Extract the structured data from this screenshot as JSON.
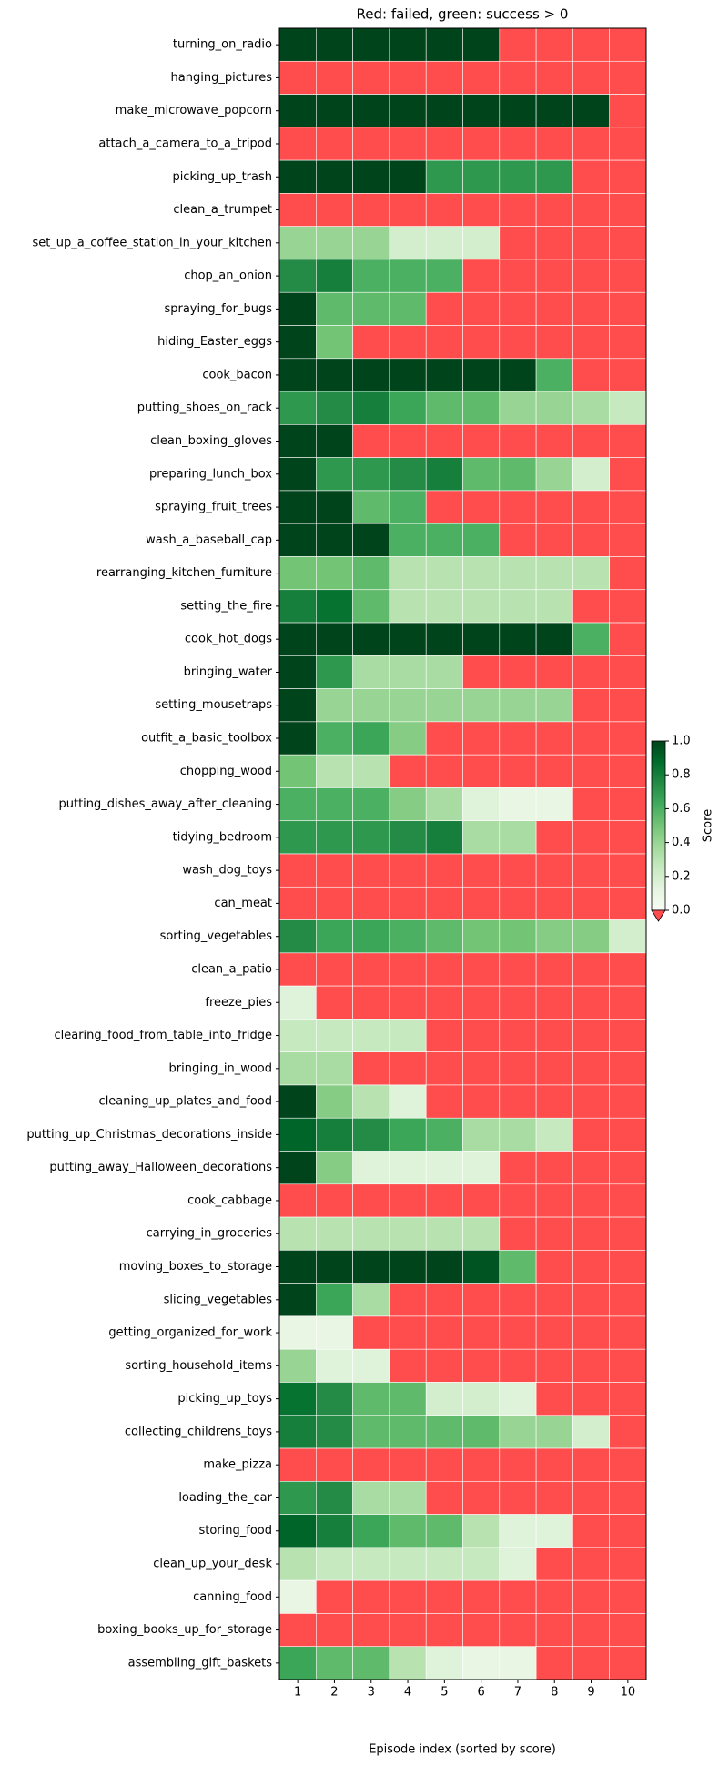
{
  "chart_data": {
    "type": "heatmap",
    "title": "Red: failed, green: success > 0",
    "x_label": "Episode index (sorted by score)",
    "x": [
      1,
      2,
      3,
      4,
      5,
      6,
      7,
      8,
      9,
      10
    ],
    "y_categories": [
      "turning_on_radio",
      "hanging_pictures",
      "make_microwave_popcorn",
      "attach_a_camera_to_a_tripod",
      "picking_up_trash",
      "clean_a_trumpet",
      "set_up_a_coffee_station_in_your_kitchen",
      "chop_an_onion",
      "spraying_for_bugs",
      "hiding_Easter_eggs",
      "cook_bacon",
      "putting_shoes_on_rack",
      "clean_boxing_gloves",
      "preparing_lunch_box",
      "spraying_fruit_trees",
      "wash_a_baseball_cap",
      "rearranging_kitchen_furniture",
      "setting_the_fire",
      "cook_hot_dogs",
      "bringing_water",
      "setting_mousetraps",
      "outfit_a_basic_toolbox",
      "chopping_wood",
      "putting_dishes_away_after_cleaning",
      "tidying_bedroom",
      "wash_dog_toys",
      "can_meat",
      "sorting_vegetables",
      "clean_a_patio",
      "freeze_pies",
      "clearing_food_from_table_into_fridge",
      "bringing_in_wood",
      "cleaning_up_plates_and_food",
      "putting_up_Christmas_decorations_inside",
      "putting_away_Halloween_decorations",
      "cook_cabbage",
      "carrying_in_groceries",
      "moving_boxes_to_storage",
      "slicing_vegetables",
      "getting_organized_for_work",
      "sorting_household_items",
      "picking_up_toys",
      "collecting_childrens_toys",
      "make_pizza",
      "loading_the_car",
      "storing_food",
      "clean_up_your_desk",
      "canning_food",
      "boxing_books_up_for_storage",
      "assembling_gift_baskets"
    ],
    "values": [
      [
        1,
        1,
        1,
        1,
        1,
        1,
        null,
        null,
        null,
        null
      ],
      [
        null,
        null,
        null,
        null,
        null,
        null,
        null,
        null,
        null,
        null
      ],
      [
        1,
        1,
        1,
        1,
        1,
        1,
        1,
        1,
        1,
        null
      ],
      [
        null,
        null,
        null,
        null,
        null,
        null,
        null,
        null,
        null,
        null
      ],
      [
        1,
        1,
        1,
        1,
        0.7,
        0.7,
        0.7,
        0.7,
        null,
        null
      ],
      [
        null,
        null,
        null,
        null,
        null,
        null,
        null,
        null,
        null,
        null
      ],
      [
        0.4,
        0.4,
        0.4,
        0.2,
        0.2,
        0.2,
        null,
        null,
        null,
        null
      ],
      [
        0.75,
        0.8,
        0.6,
        0.6,
        0.6,
        null,
        null,
        null,
        null,
        null
      ],
      [
        1,
        0.55,
        0.55,
        0.55,
        null,
        null,
        null,
        null,
        null,
        null
      ],
      [
        1,
        0.5,
        null,
        null,
        null,
        null,
        null,
        null,
        null,
        null
      ],
      [
        1,
        1,
        1,
        1,
        1,
        1,
        1,
        0.6,
        null,
        null
      ],
      [
        0.7,
        0.75,
        0.8,
        0.65,
        0.55,
        0.55,
        0.4,
        0.4,
        0.35,
        0.25
      ],
      [
        1,
        1,
        null,
        null,
        null,
        null,
        null,
        null,
        null,
        null
      ],
      [
        1,
        0.7,
        0.7,
        0.75,
        0.8,
        0.55,
        0.55,
        0.4,
        0.2,
        null
      ],
      [
        1,
        1,
        0.55,
        0.6,
        null,
        null,
        null,
        null,
        null,
        null
      ],
      [
        1,
        1,
        1,
        0.6,
        0.6,
        0.6,
        null,
        null,
        null,
        null
      ],
      [
        0.5,
        0.5,
        0.55,
        0.3,
        0.3,
        0.3,
        0.3,
        0.3,
        0.3,
        null
      ],
      [
        0.8,
        0.85,
        0.55,
        0.3,
        0.3,
        0.3,
        0.3,
        0.3,
        null,
        null
      ],
      [
        1,
        1,
        1,
        1,
        1,
        1,
        1,
        1,
        0.6,
        null
      ],
      [
        1,
        0.7,
        0.35,
        0.35,
        0.35,
        null,
        null,
        null,
        null,
        null
      ],
      [
        1,
        0.4,
        0.4,
        0.4,
        0.4,
        0.4,
        0.4,
        0.4,
        null,
        null
      ],
      [
        1,
        0.6,
        0.65,
        0.45,
        null,
        null,
        null,
        null,
        null,
        null
      ],
      [
        0.5,
        0.3,
        0.3,
        null,
        null,
        null,
        null,
        null,
        null,
        null
      ],
      [
        0.6,
        0.6,
        0.6,
        0.45,
        0.35,
        0.15,
        0.1,
        0.1,
        null,
        null
      ],
      [
        0.7,
        0.7,
        0.7,
        0.75,
        0.8,
        0.35,
        0.35,
        null,
        null,
        null
      ],
      [
        null,
        null,
        null,
        null,
        null,
        null,
        null,
        null,
        null,
        null
      ],
      [
        null,
        null,
        null,
        null,
        null,
        null,
        null,
        null,
        null,
        null
      ],
      [
        0.75,
        0.65,
        0.65,
        0.6,
        0.55,
        0.5,
        0.5,
        0.45,
        0.45,
        0.2
      ],
      [
        null,
        null,
        null,
        null,
        null,
        null,
        null,
        null,
        null,
        null
      ],
      [
        0.15,
        null,
        null,
        null,
        null,
        null,
        null,
        null,
        null,
        null
      ],
      [
        0.25,
        0.25,
        0.25,
        0.25,
        null,
        null,
        null,
        null,
        null,
        null
      ],
      [
        0.35,
        0.35,
        null,
        null,
        null,
        null,
        null,
        null,
        null,
        null
      ],
      [
        1,
        0.45,
        0.3,
        0.15,
        null,
        null,
        null,
        null,
        null,
        null
      ],
      [
        0.9,
        0.8,
        0.75,
        0.65,
        0.6,
        0.35,
        0.35,
        0.25,
        null,
        null
      ],
      [
        1,
        0.45,
        0.15,
        0.15,
        0.15,
        0.15,
        null,
        null,
        null,
        null
      ],
      [
        null,
        null,
        null,
        null,
        null,
        null,
        null,
        null,
        null,
        null
      ],
      [
        0.3,
        0.3,
        0.3,
        0.3,
        0.3,
        0.3,
        null,
        null,
        null,
        null
      ],
      [
        1,
        1,
        1,
        1,
        1,
        0.95,
        0.55,
        null,
        null,
        null
      ],
      [
        1,
        0.65,
        0.35,
        null,
        null,
        null,
        null,
        null,
        null,
        null
      ],
      [
        0.1,
        0.1,
        null,
        null,
        null,
        null,
        null,
        null,
        null,
        null
      ],
      [
        0.4,
        0.15,
        0.15,
        null,
        null,
        null,
        null,
        null,
        null,
        null
      ],
      [
        0.85,
        0.75,
        0.55,
        0.55,
        0.2,
        0.2,
        0.15,
        null,
        null,
        null
      ],
      [
        0.8,
        0.75,
        0.55,
        0.55,
        0.55,
        0.55,
        0.4,
        0.4,
        0.2,
        null
      ],
      [
        null,
        null,
        null,
        null,
        null,
        null,
        null,
        null,
        null,
        null
      ],
      [
        0.7,
        0.75,
        0.35,
        0.35,
        null,
        null,
        null,
        null,
        null,
        null
      ],
      [
        0.9,
        0.8,
        0.65,
        0.55,
        0.55,
        0.3,
        0.15,
        0.15,
        null,
        null
      ],
      [
        0.3,
        0.25,
        0.25,
        0.25,
        0.25,
        0.25,
        0.15,
        null,
        null,
        null
      ],
      [
        0.1,
        null,
        null,
        null,
        null,
        null,
        null,
        null,
        null,
        null
      ],
      [
        null,
        null,
        null,
        null,
        null,
        null,
        null,
        null,
        null,
        null
      ],
      [
        0.65,
        0.55,
        0.55,
        0.3,
        0.15,
        0.1,
        0.1,
        null,
        null,
        null
      ]
    ],
    "colorbar_label": "Score",
    "clim": [
      0,
      1
    ],
    "cticks": [
      {
        "value": 0,
        "label": "0.0"
      },
      {
        "value": 0.2,
        "label": "0.2"
      },
      {
        "value": 0.4,
        "label": "0.4"
      },
      {
        "value": 0.6,
        "label": "0.6"
      },
      {
        "value": 0.8,
        "label": "0.8"
      },
      {
        "value": 1,
        "label": "1.0"
      }
    ],
    "cmap_colors": [
      "#f7fcf5",
      "#e5f5e0",
      "#c7e9c0",
      "#a1d99b",
      "#74c476",
      "#41ab5d",
      "#238b45",
      "#006d2c",
      "#00441b"
    ],
    "failed_color": "#ff4d4d"
  }
}
